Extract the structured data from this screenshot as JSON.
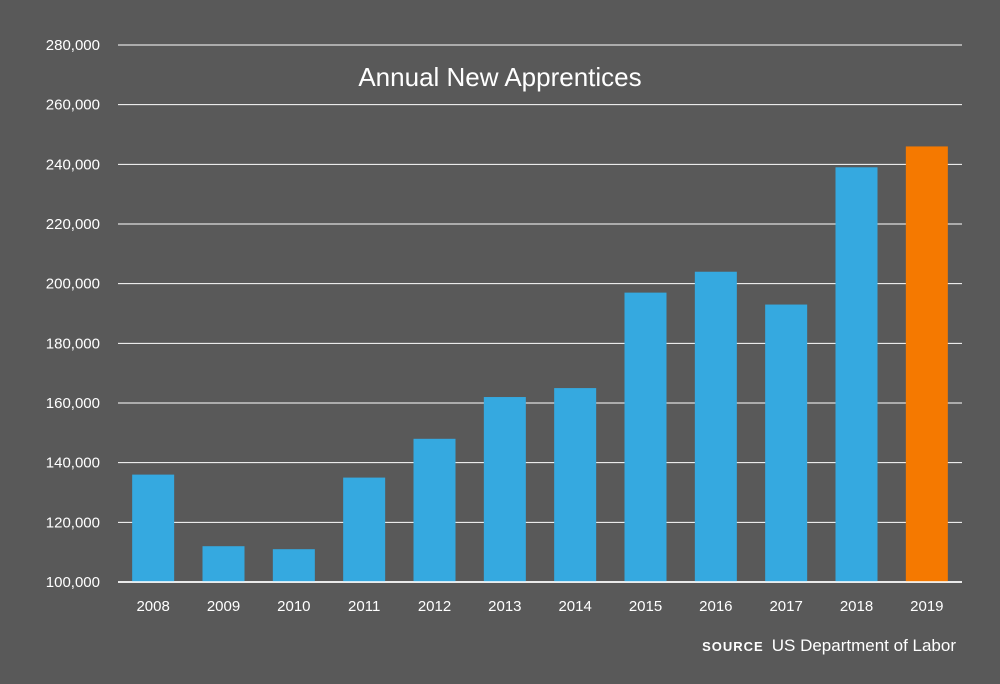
{
  "chart_data": {
    "type": "bar",
    "title": "Annual New Apprentices",
    "categories": [
      "2008",
      "2009",
      "2010",
      "2011",
      "2012",
      "2013",
      "2014",
      "2015",
      "2016",
      "2017",
      "2018",
      "2019"
    ],
    "values": [
      136000,
      112000,
      111000,
      135000,
      148000,
      162000,
      165000,
      197000,
      204000,
      193000,
      239000,
      246000
    ],
    "ylim": [
      100000,
      280000
    ],
    "yticks": [
      100000,
      120000,
      140000,
      160000,
      180000,
      200000,
      220000,
      240000,
      260000,
      280000
    ],
    "ytick_labels": [
      "100,000",
      "120,000",
      "140,000",
      "160,000",
      "180,000",
      "200,000",
      "220,000",
      "240,000",
      "260,000",
      "280,000"
    ],
    "grid": true,
    "colors": {
      "background": "#595959",
      "bar": "#35a9e0",
      "highlight_bar": "#f57900",
      "grid": "#ffffff",
      "text": "#ffffff"
    },
    "highlight_category": "2019"
  },
  "source": {
    "label": "SOURCE",
    "text": "US Department of Labor"
  }
}
